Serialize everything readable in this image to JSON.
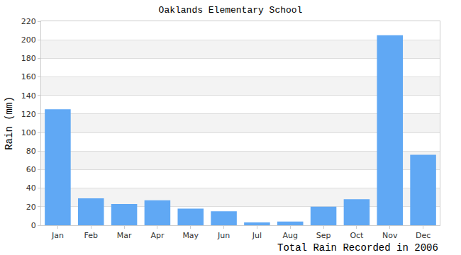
{
  "chart_data": {
    "type": "bar",
    "title": "Oaklands Elementary School",
    "xlabel": "Total Rain Recorded in 2006",
    "ylabel": "Rain (mm)",
    "categories": [
      "Jan",
      "Feb",
      "Mar",
      "Apr",
      "May",
      "Jun",
      "Jul",
      "Aug",
      "Sep",
      "Oct",
      "Nov",
      "Dec"
    ],
    "values": [
      125,
      29,
      23,
      27,
      18,
      15,
      3,
      4,
      20,
      28,
      205,
      76
    ],
    "color": "#60a8f4",
    "ylim": [
      0,
      220
    ],
    "yticks": [
      0,
      20,
      40,
      60,
      80,
      100,
      120,
      140,
      160,
      180,
      200,
      220
    ],
    "grid": true
  }
}
